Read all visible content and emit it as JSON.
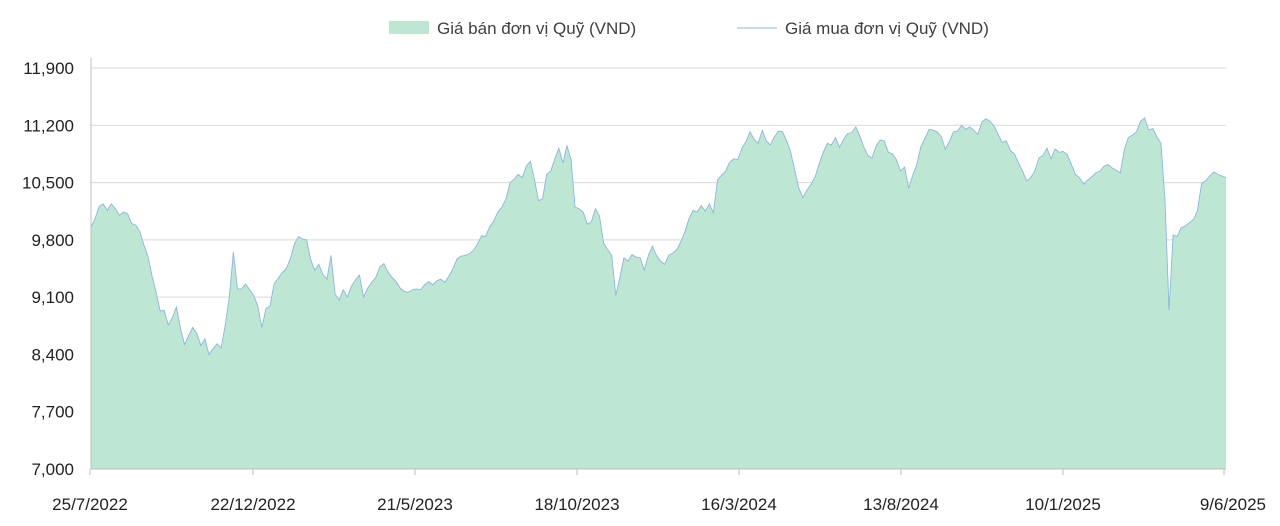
{
  "chart_data": {
    "type": "area",
    "title": "",
    "xlabel": "",
    "ylabel": "",
    "ylim": [
      7000,
      11900
    ],
    "yticks": [
      7000,
      7700,
      8400,
      9100,
      9800,
      10500,
      11200,
      11900
    ],
    "ytick_labels": [
      "7,000",
      "7,700",
      "8,400",
      "9,100",
      "9,800",
      "10,500",
      "11,200",
      "11,900"
    ],
    "xtick_labels": [
      "25/7/2022",
      "22/12/2022",
      "21/5/2023",
      "18/10/2023",
      "16/3/2024",
      "13/8/2024",
      "10/1/2025",
      "9/6/2025"
    ],
    "grid": "horizontal",
    "legend_position": "top",
    "series": [
      {
        "name": "Giá bán đơn vị Quỹ (VND)",
        "kind": "area",
        "color": "#bde6d3",
        "values": [
          9950,
          10060,
          10210,
          10240,
          10160,
          10240,
          10180,
          10100,
          10140,
          10120,
          10000,
          9980,
          9900,
          9740,
          9600,
          9360,
          9160,
          8930,
          8940,
          8760,
          8850,
          8980,
          8720,
          8520,
          8630,
          8730,
          8660,
          8510,
          8590,
          8400,
          8470,
          8530,
          8480,
          8760,
          9100,
          9650,
          9200,
          9200,
          9260,
          9190,
          9120,
          8990,
          8730,
          8960,
          8990,
          9260,
          9330,
          9400,
          9450,
          9570,
          9750,
          9840,
          9810,
          9800,
          9560,
          9430,
          9500,
          9380,
          9320,
          9610,
          9140,
          9060,
          9190,
          9100,
          9230,
          9310,
          9370,
          9100,
          9210,
          9280,
          9340,
          9470,
          9510,
          9410,
          9340,
          9290,
          9210,
          9170,
          9160,
          9190,
          9200,
          9190,
          9250,
          9290,
          9250,
          9300,
          9320,
          9280,
          9360,
          9450,
          9570,
          9600,
          9610,
          9630,
          9670,
          9750,
          9850,
          9840,
          9960,
          10030,
          10140,
          10200,
          10300,
          10500,
          10540,
          10600,
          10560,
          10700,
          10760,
          10540,
          10280,
          10300,
          10600,
          10640,
          10790,
          10920,
          10740,
          10950,
          10780,
          10200,
          10180,
          10140,
          9990,
          10020,
          10180,
          10090,
          9760,
          9680,
          9610,
          9120,
          9340,
          9580,
          9540,
          9620,
          9590,
          9580,
          9430,
          9610,
          9720,
          9610,
          9540,
          9500,
          9610,
          9640,
          9680,
          9780,
          9900,
          10060,
          10160,
          10140,
          10220,
          10150,
          10240,
          10130,
          10530,
          10590,
          10640,
          10750,
          10790,
          10780,
          10920,
          11000,
          11120,
          11030,
          10980,
          11140,
          11010,
          10960,
          11060,
          11130,
          11120,
          11010,
          10870,
          10650,
          10430,
          10320,
          10410,
          10480,
          10570,
          10730,
          10870,
          10980,
          10960,
          11050,
          10930,
          11030,
          11100,
          11110,
          11180,
          11070,
          10930,
          10830,
          10800,
          10950,
          11020,
          11010,
          10870,
          10850,
          10780,
          10640,
          10690,
          10430,
          10590,
          10720,
          10940,
          11040,
          11150,
          11140,
          11120,
          11060,
          10910,
          11000,
          11120,
          11130,
          11200,
          11150,
          11180,
          11140,
          11090,
          11240,
          11280,
          11250,
          11190,
          11090,
          10990,
          11010,
          10890,
          10850,
          10740,
          10640,
          10520,
          10560,
          10640,
          10800,
          10830,
          10920,
          10790,
          10910,
          10870,
          10880,
          10840,
          10720,
          10600,
          10560,
          10480,
          10530,
          10570,
          10620,
          10640,
          10700,
          10720,
          10680,
          10650,
          10620,
          10900,
          11050,
          11080,
          11120,
          11250,
          11290,
          11140,
          11160,
          11060,
          10980,
          10290,
          8940,
          9860,
          9840,
          9950,
          9970,
          10010,
          10050,
          10160,
          10490,
          10520,
          10580,
          10630,
          10600,
          10580,
          10560
        ]
      },
      {
        "name": "Giá mua đơn vị Quỹ (VND)",
        "kind": "line",
        "color": "#8bb7e0"
      }
    ]
  },
  "legend": {
    "sell_label": "Giá bán đơn vị Quỹ (VND)",
    "buy_label": "Giá mua đơn vị Quỹ (VND)"
  }
}
